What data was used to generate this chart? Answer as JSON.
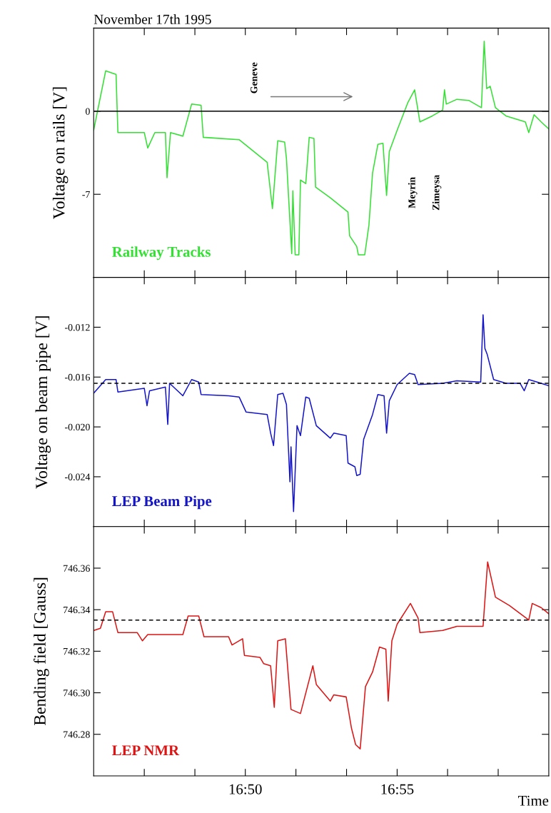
{
  "chart_data": [
    {
      "type": "line",
      "title": "November 17th 1995",
      "ylabel": "Voltage on rails [V]",
      "xlim": [
        16.75,
        17.0
      ],
      "xticks": [
        {
          "value": 16.7778,
          "label": null
        },
        {
          "value": 16.8056,
          "label": null
        },
        {
          "value": 16.8333,
          "label": null
        },
        {
          "value": 16.8611,
          "label": null
        },
        {
          "value": 16.8889,
          "label": null
        },
        {
          "value": 16.9167,
          "label": null
        },
        {
          "value": 16.9444,
          "label": null
        },
        {
          "value": 16.9722,
          "label": null
        }
      ],
      "ylim": [
        -14,
        7
      ],
      "yticks": [
        -7,
        0
      ],
      "tick_labels": "y",
      "ref_lines": [
        {
          "axis": "y",
          "value": 0,
          "label": null,
          "color": "#000000",
          "line_style": "solid"
        }
      ],
      "annotations": [
        "Geneve",
        "Meyrin",
        "Zimeysa"
      ],
      "series": [
        {
          "name": "Railway Tracks",
          "color": "#33e033",
          "x": [
            16.75,
            16.7566,
            16.7623,
            16.7633,
            16.7778,
            16.7797,
            16.7836,
            16.7894,
            16.7903,
            16.7922,
            16.799,
            16.8038,
            16.809,
            16.8102,
            16.8299,
            16.8356,
            16.8453,
            16.8482,
            16.8511,
            16.8549,
            16.8559,
            16.8588,
            16.8594,
            16.8607,
            16.8627,
            16.8636,
            16.8665,
            16.8684,
            16.871,
            16.8719,
            16.88,
            16.8897,
            16.8906,
            16.8945,
            16.8954,
            16.8989,
            16.9012,
            16.9032,
            16.9061,
            16.9089,
            16.9109,
            16.9124,
            16.9167,
            16.9225,
            16.9263,
            16.9292,
            16.936,
            16.9417,
            16.9427,
            16.9437,
            16.9495,
            16.9562,
            16.963,
            16.9645,
            16.9659,
            16.9678,
            16.9707,
            16.9765,
            16.9871,
            16.989,
            16.9919,
            16.9958,
            17.0
          ],
          "values": [
            -1.6,
            3.4,
            3.1,
            -1.8,
            -1.8,
            -3.1,
            -1.8,
            -1.8,
            -5.6,
            -1.8,
            -2.1,
            0.6,
            0.5,
            -2.2,
            -2.4,
            -3.1,
            -4.3,
            -8.2,
            -2.5,
            -2.6,
            -4.0,
            -12.0,
            -6.7,
            -12.1,
            -12.1,
            -5.8,
            -6.1,
            -2.2,
            -2.3,
            -6.4,
            -7.3,
            -8.5,
            -10.5,
            -11.4,
            -12.1,
            -12.1,
            -9.6,
            -5.2,
            -2.8,
            -2.7,
            -7.1,
            -3.4,
            -1.6,
            0.7,
            1.8,
            -0.9,
            -0.4,
            0.1,
            1.8,
            0.6,
            1.0,
            0.9,
            0.3,
            5.9,
            1.9,
            2.1,
            0.3,
            -0.4,
            -0.9,
            -1.8,
            -0.3,
            -0.9,
            -1.5
          ]
        }
      ]
    },
    {
      "type": "line",
      "ylabel": "Voltage on beam pipe [V]",
      "xlim": [
        16.75,
        17.0
      ],
      "xticks": [
        {
          "value": 16.7778,
          "label": null
        },
        {
          "value": 16.8056,
          "label": null
        },
        {
          "value": 16.8333,
          "label": null
        },
        {
          "value": 16.8611,
          "label": null
        },
        {
          "value": 16.8889,
          "label": null
        },
        {
          "value": 16.9167,
          "label": null
        },
        {
          "value": 16.9444,
          "label": null
        },
        {
          "value": 16.9722,
          "label": null
        }
      ],
      "ylim": [
        -0.028,
        -0.008
      ],
      "yticks": [
        -0.012,
        -0.016,
        {
          "value": -0.02,
          "label": "-0.020"
        },
        -0.024
      ],
      "tick_labels": "y",
      "ref_lines": [
        {
          "axis": "y",
          "value": -0.0165,
          "label": null,
          "color": "#000000",
          "line_style": "dashed"
        }
      ],
      "series": [
        {
          "name": "LEP Beam Pipe",
          "color": "#1414c8",
          "x": [
            16.75,
            16.7566,
            16.7623,
            16.7633,
            16.7778,
            16.7793,
            16.7807,
            16.7894,
            16.7907,
            16.7917,
            16.799,
            16.8038,
            16.8077,
            16.809,
            16.8241,
            16.8299,
            16.8337,
            16.8453,
            16.8472,
            16.8488,
            16.8511,
            16.854,
            16.8559,
            16.8578,
            16.8584,
            16.8598,
            16.8617,
            16.8636,
            16.8665,
            16.8684,
            16.8723,
            16.88,
            16.8819,
            16.8887,
            16.8897,
            16.8935,
            16.8945,
            16.8964,
            16.8983,
            16.9032,
            16.9061,
            16.9095,
            16.9109,
            16.9124,
            16.9167,
            16.9234,
            16.9263,
            16.9282,
            16.9417,
            16.9495,
            16.9626,
            16.9639,
            16.9649,
            16.9662,
            16.9697,
            16.9765,
            16.9842,
            16.9865,
            16.989,
            16.9958,
            17.0
          ],
          "values": [
            -0.0173,
            -0.0162,
            -0.0162,
            -0.0172,
            -0.0169,
            -0.0183,
            -0.0171,
            -0.0168,
            -0.0198,
            -0.0165,
            -0.0175,
            -0.0162,
            -0.0164,
            -0.0174,
            -0.0175,
            -0.0176,
            -0.0188,
            -0.019,
            -0.0205,
            -0.0215,
            -0.0174,
            -0.0173,
            -0.0182,
            -0.0244,
            -0.0216,
            -0.0268,
            -0.0199,
            -0.0207,
            -0.0176,
            -0.0177,
            -0.0199,
            -0.0209,
            -0.0205,
            -0.0207,
            -0.0229,
            -0.0232,
            -0.0239,
            -0.0238,
            -0.021,
            -0.019,
            -0.0174,
            -0.0175,
            -0.0205,
            -0.0179,
            -0.0166,
            -0.0157,
            -0.0158,
            -0.0166,
            -0.0165,
            -0.0163,
            -0.0164,
            -0.011,
            -0.0137,
            -0.0142,
            -0.0162,
            -0.0165,
            -0.0165,
            -0.0171,
            -0.0162,
            -0.0165,
            -0.0167
          ]
        }
      ]
    },
    {
      "type": "line",
      "ylabel": "Bending field [Gauss]",
      "xlabel": "Time",
      "xlim": [
        16.75,
        17.0
      ],
      "xticks": [
        {
          "value": 16.7778,
          "label": null
        },
        {
          "value": 16.8056,
          "label": null
        },
        {
          "value": 16.8333,
          "label": "16:50"
        },
        {
          "value": 16.8611,
          "label": null
        },
        {
          "value": 16.8889,
          "label": null
        },
        {
          "value": 16.9167,
          "label": "16:55"
        },
        {
          "value": 16.9444,
          "label": null
        },
        {
          "value": 16.9722,
          "label": null
        }
      ],
      "ylim": [
        746.26,
        746.38
      ],
      "yticks": [
        746.36,
        746.34,
        746.32,
        {
          "value": 746.3,
          "label": "746.30"
        },
        746.28
      ],
      "ref_lines": [
        {
          "axis": "y",
          "value": 746.335,
          "label": null,
          "color": "#000000",
          "line_style": "dashed"
        }
      ],
      "series": [
        {
          "name": "LEP NMR",
          "color": "#dc1414",
          "x": [
            16.75,
            16.7537,
            16.7566,
            16.7604,
            16.7633,
            16.7739,
            16.7768,
            16.7797,
            16.799,
            16.8019,
            16.8077,
            16.8106,
            16.8241,
            16.826,
            16.8318,
            16.8328,
            16.8414,
            16.8434,
            16.8472,
            16.8492,
            16.8511,
            16.8553,
            16.8584,
            16.8636,
            16.8704,
            16.8723,
            16.88,
            16.8819,
            16.8887,
            16.8916,
            16.8939,
            16.8964,
            16.8993,
            16.9032,
            16.907,
            16.9105,
            16.9118,
            16.9138,
            16.9167,
            16.924,
            16.9282,
            16.9292,
            16.9417,
            16.9495,
            16.9639,
            16.9664,
            16.9707,
            16.9784,
            16.989,
            16.9909,
            16.9958,
            17.0
          ],
          "values": [
            746.33,
            746.331,
            746.339,
            746.339,
            746.329,
            746.329,
            746.325,
            746.328,
            746.328,
            746.337,
            746.337,
            746.327,
            746.327,
            746.323,
            746.326,
            746.318,
            746.317,
            746.314,
            746.313,
            746.293,
            746.325,
            746.326,
            746.292,
            746.29,
            746.313,
            746.304,
            746.296,
            746.299,
            746.298,
            746.283,
            746.275,
            746.273,
            746.303,
            746.31,
            746.322,
            746.321,
            746.296,
            746.325,
            746.333,
            746.343,
            746.336,
            746.329,
            746.33,
            746.332,
            746.332,
            746.363,
            746.346,
            746.342,
            746.335,
            746.343,
            746.341,
            746.338
          ]
        }
      ]
    }
  ]
}
